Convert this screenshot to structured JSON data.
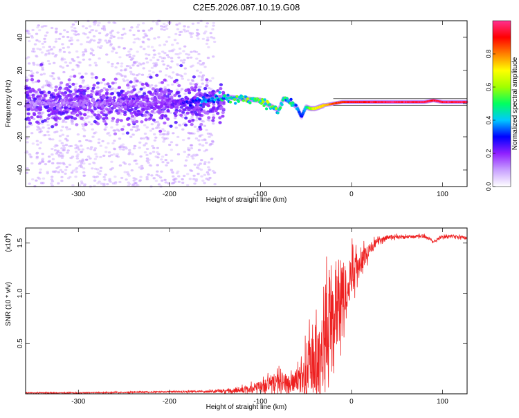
{
  "chart_data": [
    {
      "type": "heatmap",
      "title": "C2E5.2026.087.10.19.G08",
      "xlabel": "Height of straight line (km)",
      "ylabel": "Frequency (Hz)",
      "xlim": [
        -358,
        127
      ],
      "ylim": [
        -50,
        50
      ],
      "xticks": [
        {
          "value": -300,
          "label": "-300"
        },
        {
          "value": -200,
          "label": "-200"
        },
        {
          "value": -100,
          "label": "-100"
        },
        {
          "value": 0,
          "label": "0"
        },
        {
          "value": 100,
          "label": "100"
        }
      ],
      "yticks": [
        {
          "value": -40,
          "label": "-40"
        },
        {
          "value": -20,
          "label": "-20"
        },
        {
          "value": 0,
          "label": "0"
        },
        {
          "value": 20,
          "label": "20"
        },
        {
          "value": 40,
          "label": "40"
        }
      ],
      "ridge": {
        "x": [
          -358,
          -300,
          -250,
          -200,
          -160,
          -140,
          -120,
          -100,
          -90,
          -80,
          -75,
          -70,
          -60,
          -55,
          -50,
          -45,
          -40,
          -30,
          -20,
          -10,
          0,
          20,
          40,
          60,
          80,
          90,
          100,
          127
        ],
        "y": [
          0,
          0,
          0,
          0,
          2,
          4,
          3,
          2,
          -1,
          -4,
          3,
          2,
          -2,
          -8,
          -2,
          -3,
          -3,
          -1,
          0,
          1,
          1,
          1,
          1,
          1,
          1,
          2,
          1,
          1
        ],
        "amplitude": [
          0.12,
          0.14,
          0.16,
          0.18,
          0.35,
          0.45,
          0.5,
          0.55,
          0.55,
          0.5,
          0.5,
          0.45,
          0.4,
          0.3,
          0.45,
          0.6,
          0.7,
          0.75,
          0.85,
          0.9,
          0.95,
          0.97,
          0.98,
          0.98,
          0.98,
          0.96,
          0.98,
          0.98
        ]
      },
      "colorbar": {
        "label": "Normalized spectral amplitude",
        "range": [
          0,
          1
        ],
        "ticks": [
          {
            "value": 0.0,
            "label": "0.0"
          },
          {
            "value": 0.2,
            "label": "0.2"
          },
          {
            "value": 0.4,
            "label": "0.4"
          },
          {
            "value": 0.6,
            "label": "0.6"
          },
          {
            "value": 0.8,
            "label": "0.8"
          }
        ],
        "colors": [
          "#ffffff",
          "#c8a0ff",
          "#9020ff",
          "#0000ff",
          "#00c8ff",
          "#00ff60",
          "#a0ff00",
          "#ffff00",
          "#ff8000",
          "#ff0000",
          "#ff3090"
        ]
      }
    },
    {
      "type": "line",
      "xlabel": "Height of straight line (km)",
      "ylabel": "SNR (10 * v/v)",
      "exponent_label": "(x10",
      "exponent_power": "4",
      "exponent_close": ")",
      "xlim": [
        -358,
        127
      ],
      "ylim": [
        0,
        1.65
      ],
      "line_color": "#ee2020",
      "xticks": [
        {
          "value": -300,
          "label": "-300"
        },
        {
          "value": -200,
          "label": "-200"
        },
        {
          "value": -100,
          "label": "-100"
        },
        {
          "value": 0,
          "label": "0"
        },
        {
          "value": 100,
          "label": "100"
        }
      ],
      "yticks": [
        {
          "value": 0.5,
          "label": "0.5"
        },
        {
          "value": 1.0,
          "label": "1.0"
        },
        {
          "value": 1.5,
          "label": "1.5"
        }
      ],
      "envelope": {
        "x": [
          -358,
          -300,
          -250,
          -200,
          -160,
          -130,
          -110,
          -100,
          -90,
          -80,
          -70,
          -60,
          -55,
          -50,
          -45,
          -40,
          -35,
          -30,
          -25,
          -20,
          -18,
          -15,
          -10,
          -5,
          0,
          5,
          10,
          15,
          20,
          30,
          40,
          60,
          80,
          90,
          100,
          110,
          127
        ],
        "base": [
          0.01,
          0.01,
          0.015,
          0.02,
          0.025,
          0.03,
          0.05,
          0.07,
          0.1,
          0.12,
          0.1,
          0.12,
          0.15,
          0.2,
          0.25,
          0.3,
          0.35,
          0.5,
          0.8,
          0.9,
          1.0,
          0.9,
          1.0,
          1.1,
          1.2,
          1.25,
          1.3,
          1.38,
          1.45,
          1.52,
          1.56,
          1.56,
          1.57,
          1.52,
          1.56,
          1.57,
          1.55
        ],
        "jitter": [
          0.005,
          0.005,
          0.006,
          0.007,
          0.01,
          0.02,
          0.04,
          0.06,
          0.08,
          0.1,
          0.08,
          0.1,
          0.15,
          0.25,
          0.3,
          0.3,
          0.35,
          0.4,
          0.45,
          0.5,
          0.55,
          0.4,
          0.3,
          0.25,
          0.2,
          0.15,
          0.12,
          0.1,
          0.06,
          0.03,
          0.02,
          0.015,
          0.015,
          0.015,
          0.015,
          0.015,
          0.015
        ]
      }
    }
  ]
}
